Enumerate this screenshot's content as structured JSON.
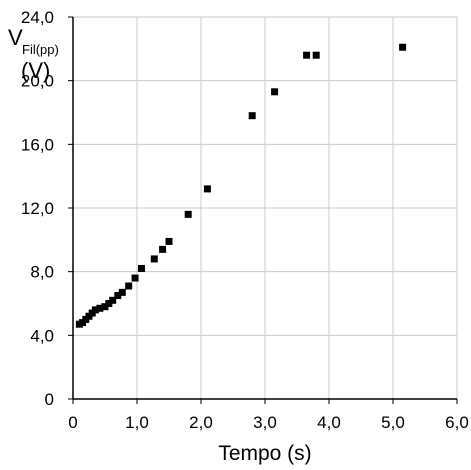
{
  "chart_data": {
    "type": "scatter",
    "title": "",
    "xlabel": "Tempo (s)",
    "ylabel": {
      "symbol": "V",
      "subscript": "Fil(pp)",
      "unit": "(V)"
    },
    "xlim": [
      0,
      6
    ],
    "ylim": [
      0,
      24
    ],
    "x_ticks": [
      "0",
      "1,0",
      "2,0",
      "3,0",
      "4,0",
      "5,0",
      "6,0"
    ],
    "y_ticks": [
      "0",
      "4,0",
      "8,0",
      "12,0",
      "16,0",
      "20,0",
      "24,0"
    ],
    "grid": true,
    "legend": "none",
    "marker": "square",
    "marker_color": "#000000",
    "series": [
      {
        "x": [
          0.1,
          0.15,
          0.2,
          0.25,
          0.3,
          0.35,
          0.42,
          0.5,
          0.56,
          0.62,
          0.7,
          0.77,
          0.87,
          0.97,
          1.07,
          1.27,
          1.4,
          1.5,
          1.8,
          2.1,
          2.8,
          3.15,
          3.65,
          3.8,
          5.15
        ],
        "y": [
          4.7,
          4.8,
          5.0,
          5.2,
          5.4,
          5.6,
          5.7,
          5.8,
          6.0,
          6.2,
          6.5,
          6.7,
          7.1,
          7.6,
          8.2,
          8.8,
          9.4,
          9.9,
          11.6,
          13.2,
          17.8,
          19.3,
          21.6,
          21.6,
          22.1
        ]
      }
    ]
  }
}
